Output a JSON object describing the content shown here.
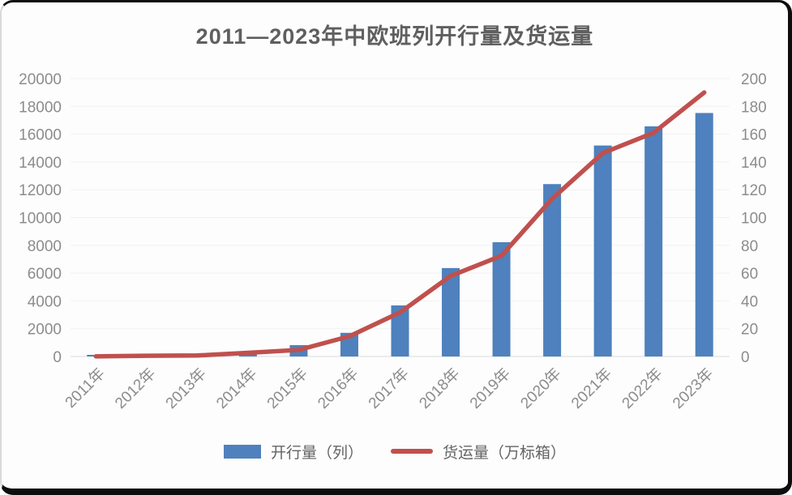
{
  "chart_data": {
    "type": "combo",
    "title": "2011—2023年中欧班列开行量及货运量",
    "categories": [
      "2011年",
      "2012年",
      "2013年",
      "2014年",
      "2015年",
      "2016年",
      "2017年",
      "2018年",
      "2019年",
      "2020年",
      "2021年",
      "2022年",
      "2023年"
    ],
    "series": [
      {
        "name": "开行量（列）",
        "type": "bar",
        "axis": "left",
        "color": "#4e81bd",
        "values": [
          17,
          42,
          80,
          308,
          815,
          1702,
          3673,
          6363,
          8225,
          12406,
          15183,
          16562,
          17523
        ]
      },
      {
        "name": "货运量（万标箱）",
        "type": "line",
        "axis": "right",
        "color": "#c0504d",
        "values": [
          0.1,
          0.5,
          0.7,
          2.6,
          4.7,
          14.5,
          31.7,
          58,
          72.5,
          113.5,
          146.4,
          161,
          190
        ]
      }
    ],
    "left_axis": {
      "min": 0,
      "max": 20000,
      "step": 2000,
      "tick_labels": [
        "0",
        "2000",
        "4000",
        "6000",
        "8000",
        "10000",
        "12000",
        "14000",
        "16000",
        "18000",
        "20000"
      ]
    },
    "right_axis": {
      "min": 0,
      "max": 200,
      "step": 20,
      "tick_labels": [
        "0",
        "20",
        "40",
        "60",
        "80",
        "100",
        "120",
        "140",
        "160",
        "180",
        "200"
      ]
    },
    "grid": true,
    "legend_position": "bottom",
    "x_label_rotation_deg": -45
  },
  "style_tokens": {
    "axis_text_color": "#8c8c8c",
    "gridline_color": "#f1f1f1",
    "baseline_color": "#dcdcdc",
    "title_color": "#5f5f5f"
  }
}
